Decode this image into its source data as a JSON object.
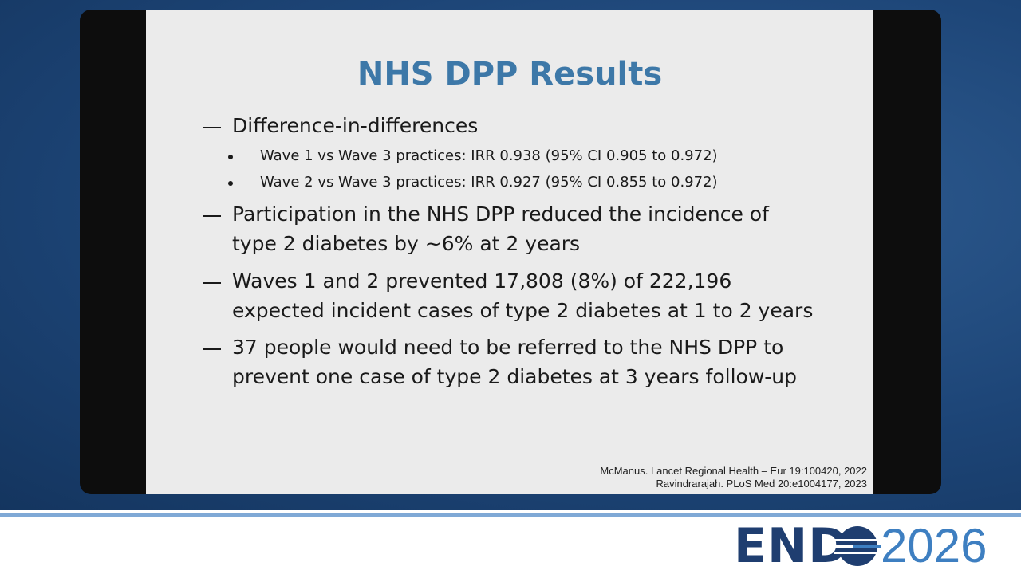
{
  "slide": {
    "title": "NHS DPP Results",
    "bullets": [
      {
        "lines": [
          "Difference-in-differences"
        ],
        "sub": [
          "Wave 1 vs Wave 3 practices: IRR 0.938 (95% CI 0.905 to 0.972)",
          "Wave 2 vs Wave 3 practices: IRR 0.927 (95% CI 0.855 to 0.972)"
        ]
      },
      {
        "lines": [
          "Participation in the NHS DPP reduced the incidence of",
          "type 2 diabetes by ~6% at 2 years"
        ]
      },
      {
        "lines": [
          "Waves 1 and 2 prevented 17,808 (8%) of 222,196",
          "expected incident cases of type 2 diabetes at 1 to 2 years"
        ]
      },
      {
        "lines": [
          "37 people would need to be referred to the NHS DPP to",
          "prevent one case of type 2 diabetes at 3 years follow-up"
        ]
      }
    ],
    "references": [
      "McManus. Lancet Regional Health – Eur 19:100420, 2022",
      "Ravindrarajah. PLoS Med 20:e1004177, 2023"
    ]
  },
  "footer": {
    "logo_left": "END",
    "logo_right": "2026"
  }
}
